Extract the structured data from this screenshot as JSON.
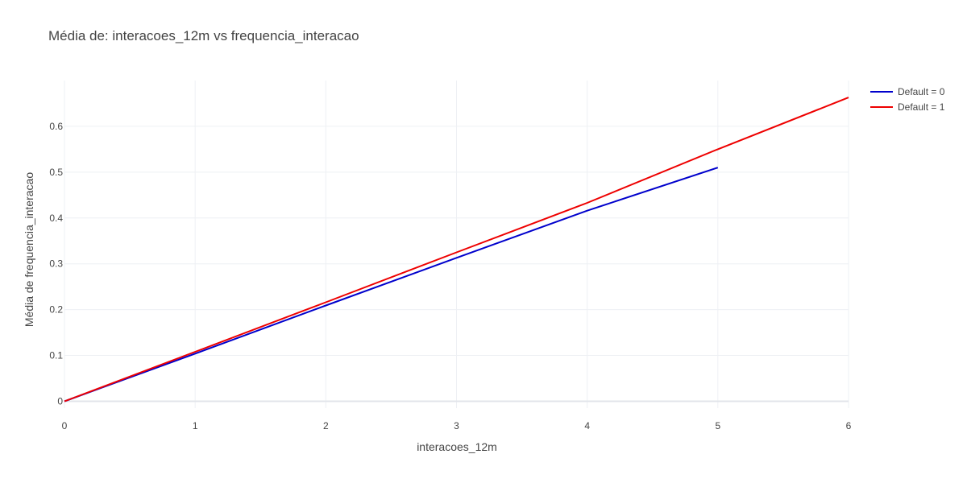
{
  "chart_data": {
    "type": "line",
    "title": "Média de: interacoes_12m vs frequencia_interacao",
    "xlabel": "interacoes_12m",
    "ylabel": "Média de frequencia_interacao",
    "xlim": [
      0,
      6
    ],
    "ylim": [
      -0.015,
      0.7
    ],
    "x_ticks": [
      0,
      1,
      2,
      3,
      4,
      5,
      6
    ],
    "y_ticks": [
      0,
      0.1,
      0.2,
      0.3,
      0.4,
      0.5,
      0.6
    ],
    "grid": true,
    "legend_position": "top-right",
    "series": [
      {
        "name": "Default = 0",
        "color": "#0000cc",
        "x": [
          0,
          1,
          2,
          3,
          4,
          5
        ],
        "y": [
          0,
          0.104,
          0.209,
          0.313,
          0.416,
          0.51
        ]
      },
      {
        "name": "Default = 1",
        "color": "#ee0000",
        "x": [
          0,
          1,
          2,
          3,
          4,
          5,
          6
        ],
        "y": [
          0,
          0.108,
          0.216,
          0.325,
          0.433,
          0.55,
          0.663
        ]
      }
    ]
  }
}
